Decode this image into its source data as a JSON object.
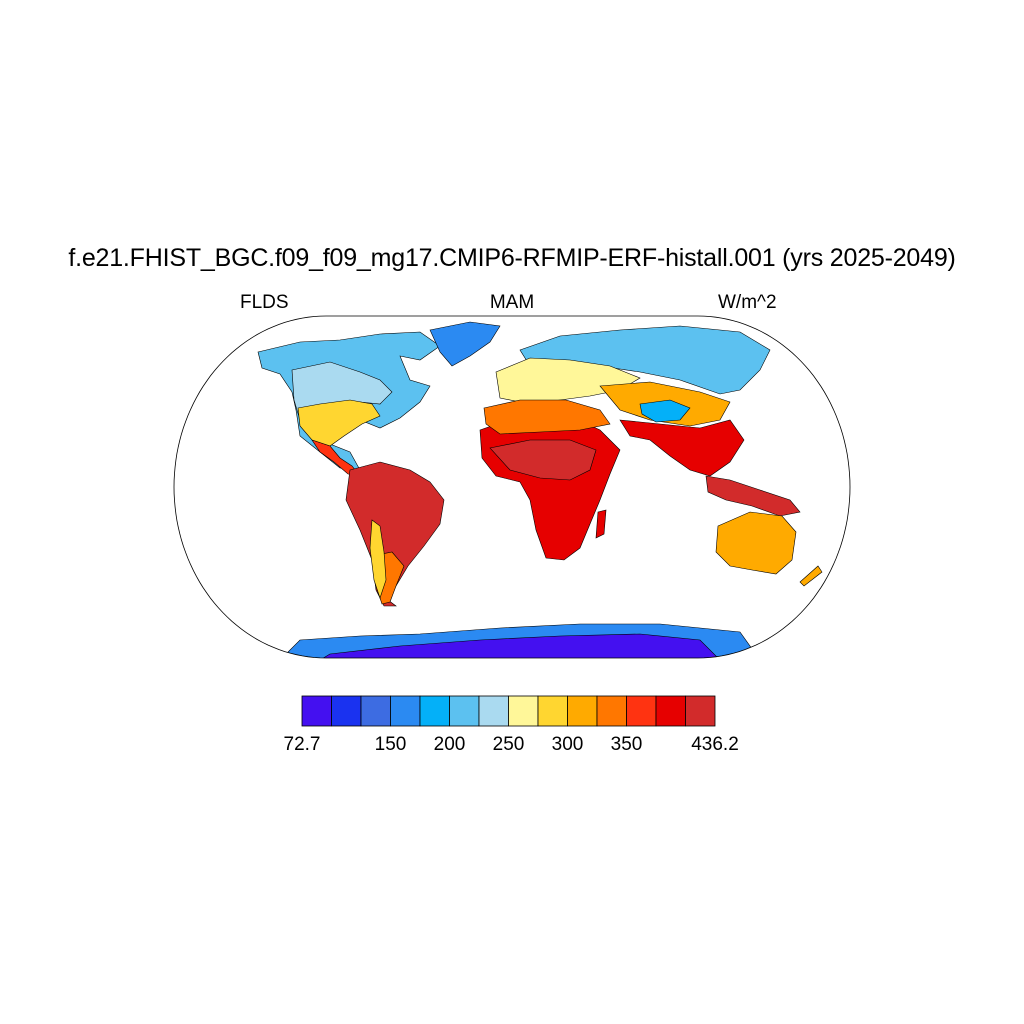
{
  "title": "f.e21.FHIST_BGC.f09_f09_mg17.CMIP6-RFMIP-ERF-histall.001 (yrs 2025-2049)",
  "left_label": "FLDS",
  "center_label": "MAM",
  "right_label": "W/m^2",
  "colorbar": {
    "min": 72.7,
    "max": 436.2,
    "tick_labels": [
      "72.7",
      "150",
      "200",
      "250",
      "300",
      "350",
      "436.2"
    ],
    "tick_positions_bin": [
      0,
      3,
      5,
      7,
      9,
      11,
      14
    ],
    "colors": [
      "#4410f0",
      "#1a32f0",
      "#3d6ce2",
      "#2b8af2",
      "#04b0f8",
      "#5cc1f0",
      "#aadaf0",
      "#fff799",
      "#ffd630",
      "#ffaa00",
      "#ff7700",
      "#ff3311",
      "#e60000",
      "#d22b2b"
    ]
  },
  "map": {
    "projection": "Robinson",
    "ocean_color": "#ffffff",
    "coastline_color": "#000000"
  }
}
